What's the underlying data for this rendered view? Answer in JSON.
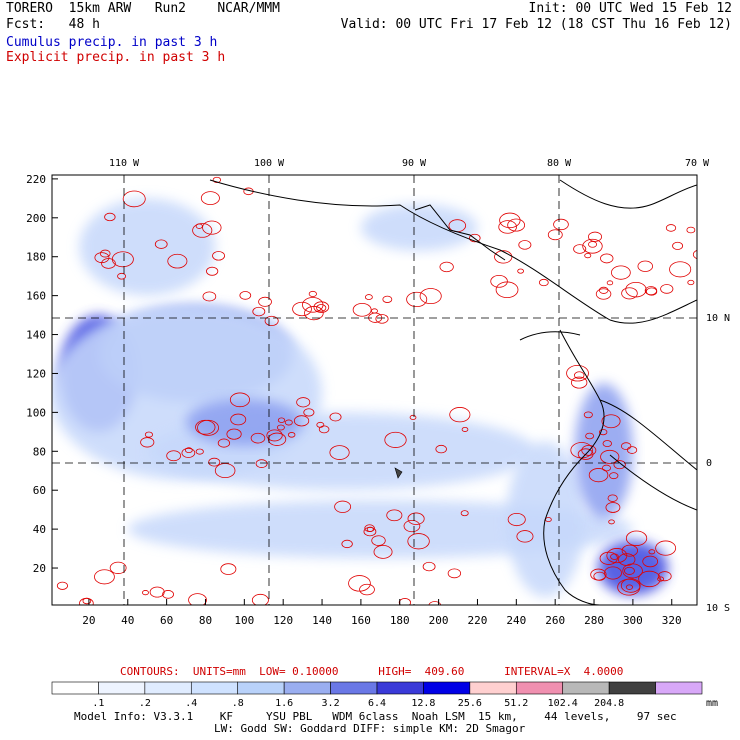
{
  "header": {
    "left_line1": "TORERO  15km ARW   Run2    NCAR/MMM",
    "left_line2": "Fcst:   48 h",
    "right_line1": "Init: 00 UTC Wed 15 Feb 12",
    "right_line2": "Valid: 00 UTC Fri 17 Feb 12 (18 CST Thu 16 Feb 12)",
    "field1": "Cumulus precip. in past 3 h",
    "field2": "Explicit precip. in past 3 h"
  },
  "colors": {
    "cumulus_text": "#0000c8",
    "explicit_text": "#d00000",
    "contour_red": "#e00000",
    "coast": "#000000"
  },
  "chart_data": {
    "type": "heatmap",
    "title": "",
    "x_ticks": [
      "20",
      "40",
      "60",
      "80",
      "100",
      "120",
      "140",
      "160",
      "180",
      "200",
      "220",
      "240",
      "260",
      "280",
      "300",
      "320"
    ],
    "y_ticks": [
      "20",
      "40",
      "60",
      "80",
      "100",
      "120",
      "140",
      "160",
      "180",
      "200",
      "220"
    ],
    "lon_labels": [
      "110 W",
      "100 W",
      "90 W",
      "80 W",
      "70 W"
    ],
    "lat_labels": [
      "10 N",
      "0",
      "10 S"
    ],
    "xlim": [
      1,
      333
    ],
    "ylim": [
      1,
      222
    ],
    "grid_lines_lon": [
      -110,
      -100,
      -90,
      -80
    ],
    "grid_lines_lat": [
      10,
      0
    ],
    "contours": {
      "text": "CONTOURS:  UNITS=mm  LOW= 0.10000      HIGH=  409.60      INTERVAL=X  4.0000",
      "units": "mm",
      "low": 0.1,
      "high": 409.6,
      "interval": "X 4.0000"
    },
    "colorbar": {
      "labels": [
        ".1",
        ".2",
        ".4",
        ".8",
        "1.6",
        "3.2",
        "6.4",
        "12.8",
        "25.6",
        "51.2",
        "102.4",
        "204.8"
      ],
      "unit": "mm",
      "colors": [
        "#ffffff",
        "#eef4ff",
        "#e0ecff",
        "#cfe2ff",
        "#b9d2fa",
        "#9aaef0",
        "#6a78e6",
        "#3a3ad8",
        "#0000e6",
        "#ffd0d0",
        "#f090b0",
        "#b8b8b8",
        "#404040",
        "#d8a8f8"
      ]
    },
    "blobs": [
      {
        "x": 25,
        "y": 120,
        "rx": 20,
        "ry": 30,
        "level": 3
      },
      {
        "x": 75,
        "y": 130,
        "rx": 50,
        "ry": 25,
        "level": 2
      },
      {
        "x": 70,
        "y": 110,
        "rx": 70,
        "ry": 45,
        "level": 1
      },
      {
        "x": 50,
        "y": 185,
        "rx": 35,
        "ry": 25,
        "level": 1
      },
      {
        "x": 150,
        "y": 80,
        "rx": 100,
        "ry": 20,
        "level": 1
      },
      {
        "x": 170,
        "y": 40,
        "rx": 130,
        "ry": 15,
        "level": 1
      },
      {
        "x": 255,
        "y": 45,
        "rx": 20,
        "ry": 40,
        "level": 1
      },
      {
        "x": 300,
        "y": 20,
        "rx": 18,
        "ry": 14,
        "level": 3
      },
      {
        "x": 285,
        "y": 80,
        "rx": 15,
        "ry": 35,
        "level": 2
      },
      {
        "x": 190,
        "y": 195,
        "rx": 30,
        "ry": 12,
        "level": 1
      },
      {
        "x": 100,
        "y": 95,
        "rx": 30,
        "ry": 12,
        "level": 2
      }
    ],
    "red_regions": [
      {
        "x": 285,
        "y": 85,
        "rx": 15,
        "ry": 40
      },
      {
        "x": 300,
        "y": 20,
        "rx": 18,
        "ry": 12
      },
      {
        "x": 310,
        "y": 180,
        "rx": 30,
        "ry": 20
      },
      {
        "x": 240,
        "y": 180,
        "rx": 40,
        "ry": 20
      },
      {
        "x": 110,
        "y": 10,
        "rx": 110,
        "ry": 12
      },
      {
        "x": 110,
        "y": 95,
        "rx": 40,
        "ry": 12
      },
      {
        "x": 170,
        "y": 85,
        "rx": 120,
        "ry": 15
      },
      {
        "x": 140,
        "y": 155,
        "rx": 60,
        "ry": 8
      },
      {
        "x": 230,
        "y": 40,
        "rx": 80,
        "ry": 12
      },
      {
        "x": 60,
        "y": 190,
        "rx": 45,
        "ry": 30
      }
    ]
  },
  "footer": {
    "line1": "Model Info: V3.3.1    KF     YSU PBL   WDM 6class  Noah LSM  15 km,    44 levels,    97 sec",
    "line2": "LW: Godd SW: Goddard DIFF: simple KM: 2D Smagor"
  }
}
